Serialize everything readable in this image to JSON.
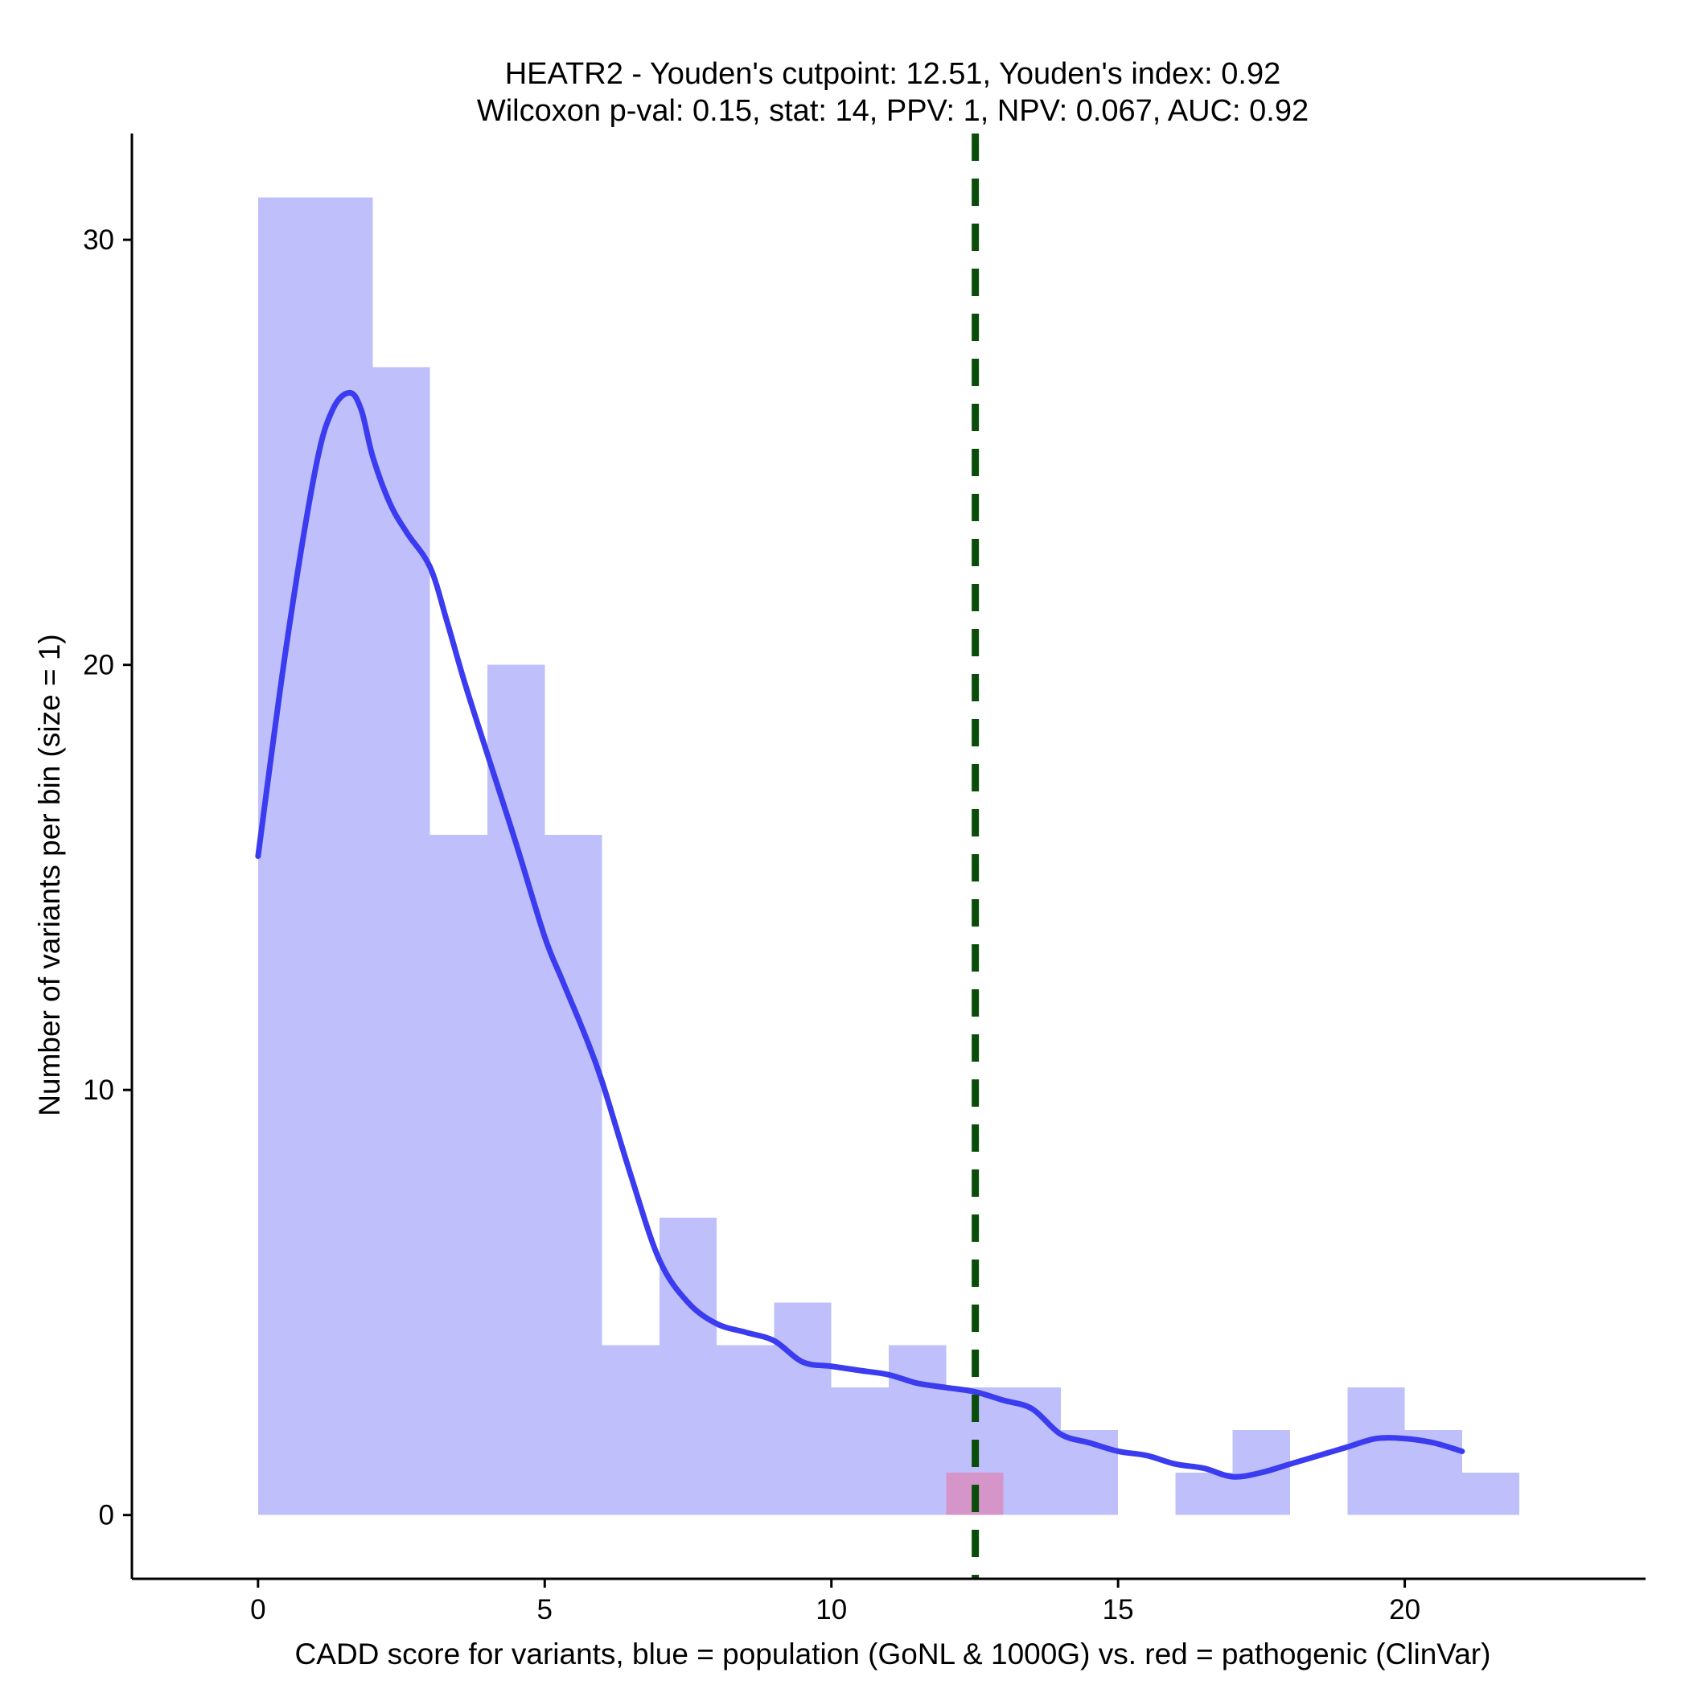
{
  "chart_data": {
    "type": "bar",
    "title_line1": "HEATR2 - Youden's cutpoint: 12.51, Youden's index: 0.92",
    "title_line2": "Wilcoxon p-val: 0.15, stat: 14, PPV: 1, NPV: 0.067, AUC: 0.92",
    "xlabel": "CADD score for variants, blue = population (GoNL & 1000G) vs. red = pathogenic (ClinVar)",
    "ylabel": "Number of variants per bin (size = 1)",
    "xlim": [
      -2.2,
      24.2
    ],
    "ylim": [
      -1.5,
      32.5
    ],
    "x_ticks": [
      0,
      5,
      10,
      15,
      20
    ],
    "y_ticks": [
      0,
      10,
      20,
      30
    ],
    "bin_width": 1,
    "series": [
      {
        "name": "population (GoNL & 1000G)",
        "color": "#bfbffb",
        "bins": [
          {
            "x0": 0,
            "count": 31
          },
          {
            "x0": 1,
            "count": 31
          },
          {
            "x0": 2,
            "count": 27
          },
          {
            "x0": 3,
            "count": 16
          },
          {
            "x0": 4,
            "count": 20
          },
          {
            "x0": 5,
            "count": 16
          },
          {
            "x0": 6,
            "count": 4
          },
          {
            "x0": 7,
            "count": 7
          },
          {
            "x0": 8,
            "count": 4
          },
          {
            "x0": 9,
            "count": 5
          },
          {
            "x0": 10,
            "count": 3
          },
          {
            "x0": 11,
            "count": 4
          },
          {
            "x0": 12,
            "count": 3
          },
          {
            "x0": 13,
            "count": 3
          },
          {
            "x0": 14,
            "count": 2
          },
          {
            "x0": 15,
            "count": 0
          },
          {
            "x0": 16,
            "count": 1
          },
          {
            "x0": 17,
            "count": 2
          },
          {
            "x0": 18,
            "count": 0
          },
          {
            "x0": 19,
            "count": 3
          },
          {
            "x0": 20,
            "count": 2
          },
          {
            "x0": 21,
            "count": 1
          }
        ]
      },
      {
        "name": "pathogenic (ClinVar)",
        "color": "#d695c8",
        "bins": [
          {
            "x0": 12,
            "count": 1
          }
        ]
      }
    ],
    "density_curve": {
      "color": "#3b3bf0",
      "x": [
        0,
        0.5,
        1.0,
        1.3,
        1.6,
        1.8,
        2.0,
        2.3,
        2.6,
        3.0,
        3.3,
        3.6,
        4.0,
        4.5,
        5.0,
        5.3,
        5.7,
        6.0,
        6.5,
        7.0,
        7.5,
        8.0,
        8.5,
        9.0,
        9.5,
        10.0,
        10.5,
        11.0,
        11.5,
        12.0,
        12.5,
        13.0,
        13.5,
        14.0,
        14.5,
        15.0,
        15.5,
        16.0,
        16.5,
        17.0,
        17.5,
        18.0,
        18.5,
        19.0,
        19.5,
        20.0,
        20.5,
        21.0
      ],
      "y": [
        15.5,
        20.5,
        24.6,
        26.0,
        26.4,
        26.0,
        24.9,
        23.8,
        23.1,
        22.3,
        21.0,
        19.6,
        17.9,
        15.8,
        13.6,
        12.6,
        11.3,
        10.2,
        8.0,
        6.0,
        5.0,
        4.5,
        4.3,
        4.1,
        3.6,
        3.5,
        3.4,
        3.3,
        3.1,
        3.0,
        2.9,
        2.7,
        2.5,
        1.9,
        1.7,
        1.5,
        1.4,
        1.2,
        1.1,
        0.9,
        1.0,
        1.2,
        1.4,
        1.6,
        1.8,
        1.8,
        1.7,
        1.5
      ]
    },
    "cutpoint": {
      "x": 12.51,
      "color": "#0a4d0a",
      "style": "dashed"
    }
  }
}
